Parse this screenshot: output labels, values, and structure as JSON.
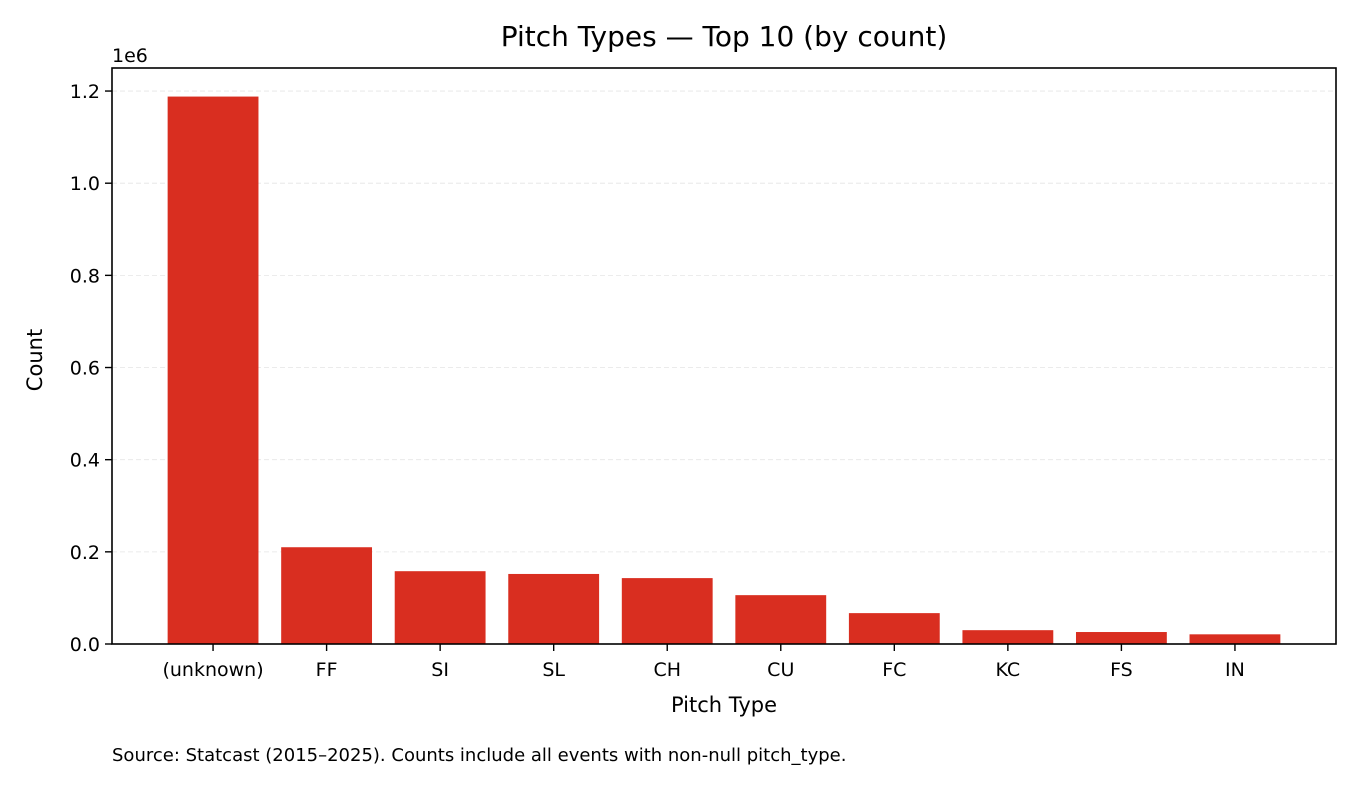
{
  "chart_data": {
    "type": "bar",
    "title": "Pitch Types — Top 10 (by count)",
    "xlabel": "Pitch Type",
    "ylabel": "Count",
    "scale_label": "1e6",
    "categories": [
      "(unknown)",
      "FF",
      "SI",
      "SL",
      "CH",
      "CU",
      "FC",
      "KC",
      "FS",
      "IN"
    ],
    "values": [
      1188000,
      210000,
      158000,
      152000,
      143000,
      106000,
      67000,
      30000,
      26000,
      21000
    ],
    "ylim": [
      0,
      1250000
    ],
    "yticks": [
      0,
      200000,
      400000,
      600000,
      800000,
      1000000,
      1200000
    ],
    "ytick_labels": [
      "0.0",
      "0.2",
      "0.4",
      "0.6",
      "0.8",
      "1.0",
      "1.2"
    ],
    "grid": true,
    "bar_color": "#d92e20"
  },
  "footnote": "Source: Statcast (2015–2025). Counts include all events with non-null pitch_type."
}
